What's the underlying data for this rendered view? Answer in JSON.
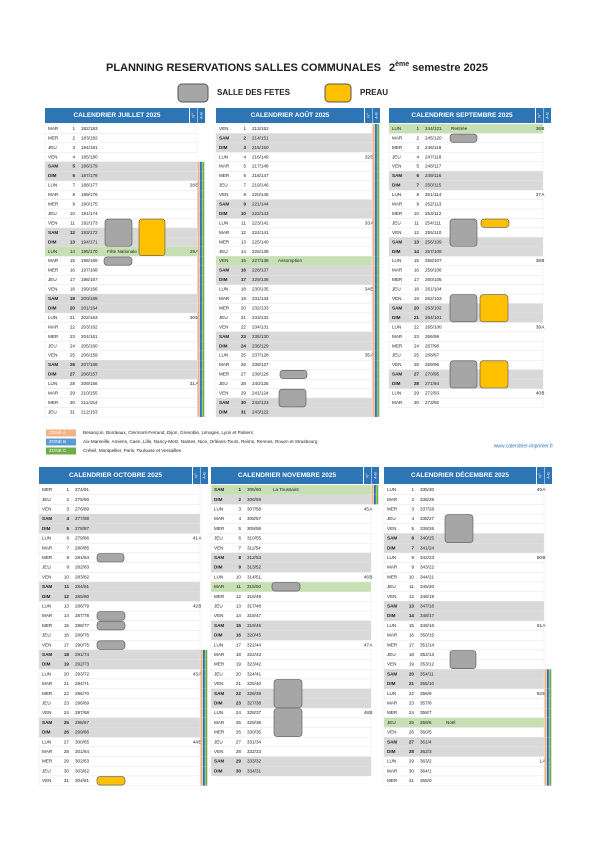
{
  "header": {
    "title": "PLANNING RESERVATIONS SALLES COMMUNALES",
    "semester_num": "2",
    "semester_sup": "ème",
    "semester_rest": "semestre 2025"
  },
  "legend": {
    "salle": "SALLE DES FETES",
    "preau": "PREAU"
  },
  "months": [
    {
      "title": "CALENDRIER JUILLET 2025",
      "col_week": "N°",
      "col_zone": "A-B",
      "rows": [
        [
          "MAR",
          "1",
          "182/183"
        ],
        [
          "MER",
          "2",
          "183/182"
        ],
        [
          "JEU",
          "3",
          "184/181"
        ],
        [
          "VEN",
          "4",
          "185/180"
        ],
        [
          "SAM",
          "5",
          "186/179"
        ],
        [
          "DIM",
          "6",
          "187/178"
        ],
        [
          "LUN",
          "7",
          "188/177",
          "28",
          "B"
        ],
        [
          "MAR",
          "8",
          "189/176"
        ],
        [
          "MER",
          "9",
          "190/175"
        ],
        [
          "JEU",
          "10",
          "191/174"
        ],
        [
          "VEN",
          "11",
          "192/173"
        ],
        [
          "SAM",
          "12",
          "193/172"
        ],
        [
          "DIM",
          "13",
          "194/171"
        ],
        [
          "LUN",
          "14",
          "195/170",
          "29",
          "A",
          "Fête Nationale"
        ],
        [
          "MAR",
          "15",
          "196/169"
        ],
        [
          "MER",
          "16",
          "197/168"
        ],
        [
          "JEU",
          "17",
          "198/167"
        ],
        [
          "VEN",
          "18",
          "199/166"
        ],
        [
          "SAM",
          "19",
          "200/165"
        ],
        [
          "DIM",
          "20",
          "201/164"
        ],
        [
          "LUN",
          "21",
          "202/163",
          "30",
          "B"
        ],
        [
          "MAR",
          "22",
          "203/162"
        ],
        [
          "MER",
          "23",
          "204/161"
        ],
        [
          "JEU",
          "24",
          "205/160"
        ],
        [
          "VEN",
          "25",
          "206/159"
        ],
        [
          "SAM",
          "26",
          "207/158"
        ],
        [
          "DIM",
          "27",
          "208/157"
        ],
        [
          "LUN",
          "28",
          "209/156",
          "31",
          "A"
        ],
        [
          "MAR",
          "29",
          "210/155"
        ],
        [
          "MER",
          "30",
          "211/154"
        ],
        [
          "JEU",
          "31",
          "212/153"
        ]
      ]
    },
    {
      "title": "CALENDRIER AOÛT 2025",
      "col_week": "N°",
      "col_zone": "A-B",
      "rows": [
        [
          "VEN",
          "1",
          "213/152"
        ],
        [
          "SAM",
          "2",
          "214/151"
        ],
        [
          "DIM",
          "3",
          "215/150"
        ],
        [
          "LUN",
          "4",
          "216/149",
          "32",
          "B"
        ],
        [
          "MAR",
          "5",
          "217/148"
        ],
        [
          "MER",
          "6",
          "218/147"
        ],
        [
          "JEU",
          "7",
          "219/146"
        ],
        [
          "VEN",
          "8",
          "220/145"
        ],
        [
          "SAM",
          "9",
          "221/144"
        ],
        [
          "DIM",
          "10",
          "222/143"
        ],
        [
          "LUN",
          "11",
          "223/142",
          "33",
          "A"
        ],
        [
          "MAR",
          "12",
          "224/141"
        ],
        [
          "MER",
          "13",
          "225/140"
        ],
        [
          "JEU",
          "14",
          "226/139"
        ],
        [
          "VEN",
          "15",
          "227/138",
          null,
          null,
          "Assomption"
        ],
        [
          "SAM",
          "16",
          "228/137"
        ],
        [
          "DIM",
          "17",
          "229/136"
        ],
        [
          "LUN",
          "18",
          "230/135",
          "34",
          "B"
        ],
        [
          "MAR",
          "19",
          "231/134"
        ],
        [
          "MER",
          "20",
          "232/133"
        ],
        [
          "JEU",
          "21",
          "233/132"
        ],
        [
          "VEN",
          "22",
          "234/131"
        ],
        [
          "SAM",
          "23",
          "235/130"
        ],
        [
          "DIM",
          "24",
          "236/129"
        ],
        [
          "LUN",
          "25",
          "237/128",
          "35",
          "A"
        ],
        [
          "MAR",
          "26",
          "238/127"
        ],
        [
          "MER",
          "27",
          "239/126"
        ],
        [
          "JEU",
          "28",
          "240/125"
        ],
        [
          "VEN",
          "29",
          "241/124"
        ],
        [
          "SAM",
          "30",
          "242/123"
        ],
        [
          "DIM",
          "31",
          "243/122"
        ]
      ]
    },
    {
      "title": "CALENDRIER SEPTEMBRE 2025",
      "col_week": "N°",
      "col_zone": "A-B",
      "rows": [
        [
          "LUN",
          "1",
          "244/121",
          "36",
          "B",
          "Rentrée"
        ],
        [
          "MAR",
          "2",
          "245/120"
        ],
        [
          "MER",
          "3",
          "246/119"
        ],
        [
          "JEU",
          "4",
          "247/118"
        ],
        [
          "VEN",
          "5",
          "248/117"
        ],
        [
          "SAM",
          "6",
          "249/116"
        ],
        [
          "DIM",
          "7",
          "250/115"
        ],
        [
          "LUN",
          "8",
          "251/114",
          "37",
          "A"
        ],
        [
          "MAR",
          "9",
          "252/113"
        ],
        [
          "MER",
          "10",
          "253/112"
        ],
        [
          "JEU",
          "11",
          "254/111"
        ],
        [
          "VEN",
          "12",
          "255/110"
        ],
        [
          "SAM",
          "13",
          "256/109"
        ],
        [
          "DIM",
          "14",
          "257/108"
        ],
        [
          "LUN",
          "15",
          "258/107",
          "38",
          "B"
        ],
        [
          "MAR",
          "16",
          "259/106"
        ],
        [
          "MER",
          "17",
          "260/105"
        ],
        [
          "JEU",
          "18",
          "261/104"
        ],
        [
          "VEN",
          "19",
          "262/103"
        ],
        [
          "SAM",
          "20",
          "263/102"
        ],
        [
          "DIM",
          "21",
          "264/101"
        ],
        [
          "LUN",
          "22",
          "265/100",
          "39",
          "A"
        ],
        [
          "MAR",
          "23",
          "266/99"
        ],
        [
          "MER",
          "24",
          "267/98"
        ],
        [
          "JEU",
          "25",
          "268/97"
        ],
        [
          "VEN",
          "26",
          "269/96"
        ],
        [
          "SAM",
          "27",
          "270/95"
        ],
        [
          "DIM",
          "28",
          "271/94"
        ],
        [
          "LUN",
          "29",
          "272/93",
          "40",
          "B"
        ],
        [
          "MAR",
          "30",
          "273/92"
        ]
      ]
    },
    {
      "title": "CALENDRIER OCTOBRE 2025",
      "col_week": "N°",
      "col_zone": "A-B",
      "rows": [
        [
          "MER",
          "1",
          "274/91"
        ],
        [
          "JEU",
          "2",
          "275/90"
        ],
        [
          "VEN",
          "3",
          "276/89"
        ],
        [
          "SAM",
          "4",
          "277/88"
        ],
        [
          "DIM",
          "5",
          "278/87"
        ],
        [
          "LUN",
          "6",
          "279/86",
          "41",
          "A"
        ],
        [
          "MAR",
          "7",
          "280/85"
        ],
        [
          "MER",
          "8",
          "281/84"
        ],
        [
          "JEU",
          "9",
          "282/83"
        ],
        [
          "VEN",
          "10",
          "283/82"
        ],
        [
          "SAM",
          "11",
          "284/81"
        ],
        [
          "DIM",
          "12",
          "285/80"
        ],
        [
          "LUN",
          "13",
          "286/79",
          "42",
          "B"
        ],
        [
          "MAR",
          "14",
          "287/78"
        ],
        [
          "MER",
          "15",
          "288/77"
        ],
        [
          "JEU",
          "16",
          "289/76"
        ],
        [
          "VEN",
          "17",
          "290/75"
        ],
        [
          "SAM",
          "18",
          "291/74"
        ],
        [
          "DIM",
          "19",
          "292/73"
        ],
        [
          "LUN",
          "20",
          "293/72",
          "43",
          "A"
        ],
        [
          "MAR",
          "21",
          "294/71"
        ],
        [
          "MER",
          "22",
          "295/70"
        ],
        [
          "JEU",
          "23",
          "296/69"
        ],
        [
          "VEN",
          "24",
          "297/68"
        ],
        [
          "SAM",
          "25",
          "298/67"
        ],
        [
          "DIM",
          "26",
          "299/66"
        ],
        [
          "LUN",
          "27",
          "300/65",
          "44",
          "B"
        ],
        [
          "MAR",
          "28",
          "301/64"
        ],
        [
          "MER",
          "29",
          "302/63"
        ],
        [
          "JEU",
          "30",
          "303/62"
        ],
        [
          "VEN",
          "31",
          "304/61"
        ]
      ]
    },
    {
      "title": "CALENDRIER NOVEMBRE 2025",
      "col_week": "N°",
      "col_zone": "A-B",
      "rows": [
        [
          "SAM",
          "1",
          "305/60",
          null,
          null,
          "La Toussaint"
        ],
        [
          "DIM",
          "2",
          "306/59"
        ],
        [
          "LUN",
          "3",
          "307/58",
          "45",
          "A"
        ],
        [
          "MAR",
          "4",
          "308/57"
        ],
        [
          "MER",
          "5",
          "309/56"
        ],
        [
          "JEU",
          "6",
          "310/55"
        ],
        [
          "VEN",
          "7",
          "311/54"
        ],
        [
          "SAM",
          "8",
          "312/53"
        ],
        [
          "DIM",
          "9",
          "313/52"
        ],
        [
          "LUN",
          "10",
          "314/51",
          "46",
          "B"
        ],
        [
          "MAR",
          "11",
          "315/50",
          null,
          null,
          "11/11"
        ],
        [
          "MER",
          "12",
          "316/49"
        ],
        [
          "JEU",
          "13",
          "317/48"
        ],
        [
          "VEN",
          "14",
          "318/47"
        ],
        [
          "SAM",
          "15",
          "319/46"
        ],
        [
          "DIM",
          "16",
          "320/45"
        ],
        [
          "LUN",
          "17",
          "321/44",
          "47",
          "A"
        ],
        [
          "MAR",
          "18",
          "322/43"
        ],
        [
          "MER",
          "19",
          "323/42"
        ],
        [
          "JEU",
          "20",
          "324/41"
        ],
        [
          "VEN",
          "21",
          "325/40"
        ],
        [
          "SAM",
          "22",
          "326/39"
        ],
        [
          "DIM",
          "23",
          "327/38"
        ],
        [
          "LUN",
          "24",
          "328/37",
          "48",
          "B"
        ],
        [
          "MAR",
          "25",
          "329/36"
        ],
        [
          "MER",
          "26",
          "330/35"
        ],
        [
          "JEU",
          "27",
          "331/34"
        ],
        [
          "VEN",
          "28",
          "332/33"
        ],
        [
          "SAM",
          "29",
          "333/32"
        ],
        [
          "DIM",
          "30",
          "334/31"
        ]
      ]
    },
    {
      "title": "CALENDRIER DÉCEMBRE 2025",
      "col_week": "N°",
      "col_zone": "A-B",
      "rows": [
        [
          "LUN",
          "1",
          "335/30",
          "49",
          "A"
        ],
        [
          "MAR",
          "2",
          "336/29"
        ],
        [
          "MER",
          "3",
          "337/28"
        ],
        [
          "JEU",
          "4",
          "338/27"
        ],
        [
          "VEN",
          "5",
          "339/26"
        ],
        [
          "SAM",
          "6",
          "340/25"
        ],
        [
          "DIM",
          "7",
          "341/24"
        ],
        [
          "LUN",
          "8",
          "342/23",
          "50",
          "B"
        ],
        [
          "MAR",
          "9",
          "343/22"
        ],
        [
          "MER",
          "10",
          "344/21"
        ],
        [
          "JEU",
          "11",
          "345/20"
        ],
        [
          "VEN",
          "12",
          "346/19"
        ],
        [
          "SAM",
          "13",
          "347/18"
        ],
        [
          "DIM",
          "14",
          "348/17"
        ],
        [
          "LUN",
          "15",
          "349/16",
          "51",
          "A"
        ],
        [
          "MAR",
          "16",
          "350/15"
        ],
        [
          "MER",
          "17",
          "351/14"
        ],
        [
          "JEU",
          "18",
          "352/13"
        ],
        [
          "VEN",
          "19",
          "353/12"
        ],
        [
          "SAM",
          "20",
          "354/11"
        ],
        [
          "DIM",
          "21",
          "355/10"
        ],
        [
          "LUN",
          "22",
          "356/9",
          "52",
          "B"
        ],
        [
          "MAR",
          "23",
          "357/8"
        ],
        [
          "MER",
          "24",
          "358/7"
        ],
        [
          "JEU",
          "25",
          "359/6",
          null,
          null,
          "Noël"
        ],
        [
          "VEN",
          "26",
          "360/5"
        ],
        [
          "SAM",
          "27",
          "361/4"
        ],
        [
          "DIM",
          "28",
          "362/3"
        ],
        [
          "LUN",
          "29",
          "363/2",
          "1",
          "A"
        ],
        [
          "MAR",
          "30",
          "364/1"
        ],
        [
          "MER",
          "31",
          "365/0"
        ]
      ]
    }
  ],
  "zones": [
    {
      "label": "ZONE A",
      "text": "Besançon, Bordeaux, Clermont-Ferrand, Dijon, Grenoble, Limoges, Lyon et Poitiers"
    },
    {
      "label": "ZONE B",
      "text": "Aix-Marseille, Amiens, Caen, Lille, Nancy-Metz, Nantes, Nice, Orléans-Tours, Reims, Rennes, Rouen et Strasbourg"
    },
    {
      "label": "ZONE C",
      "text": "Créteil, Montpellier, Paris, Toulouse et Versailles"
    }
  ],
  "website": "www.calendrier-imprimer.fr"
}
